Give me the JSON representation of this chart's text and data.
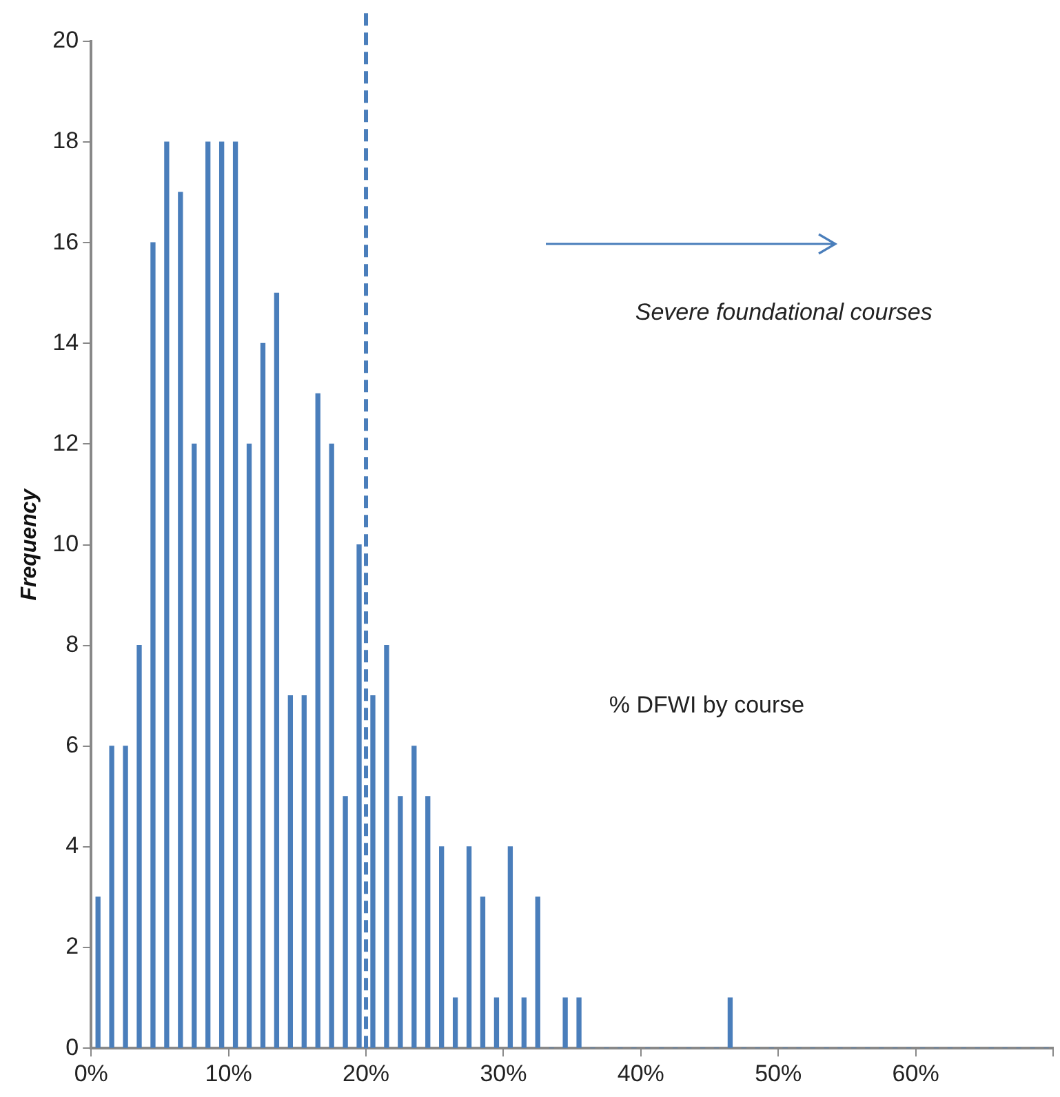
{
  "chart_data": {
    "type": "histogram",
    "ylabel": "Frequency",
    "bins": [
      0,
      1,
      2,
      3,
      4,
      5,
      6,
      7,
      8,
      9,
      10,
      11,
      12,
      13,
      14,
      15,
      16,
      17,
      18,
      19,
      20,
      21,
      22,
      23,
      24,
      25,
      26,
      27,
      28,
      29,
      30,
      31,
      32,
      33,
      34,
      35,
      36,
      37,
      38,
      39,
      40,
      41,
      42,
      43,
      44,
      45,
      46,
      47,
      48,
      49,
      50,
      51,
      52,
      53,
      54,
      55,
      56,
      57,
      58,
      59,
      60,
      61,
      62,
      63,
      64,
      65,
      66,
      67,
      68,
      69,
      70
    ],
    "values": [
      3,
      6,
      6,
      8,
      16,
      18,
      17,
      12,
      18,
      18,
      18,
      12,
      14,
      15,
      7,
      7,
      13,
      12,
      5,
      10,
      7,
      8,
      5,
      6,
      5,
      4,
      1,
      4,
      3,
      1,
      4,
      1,
      3,
      0,
      1,
      1,
      0,
      0,
      0,
      0,
      0,
      0,
      0,
      0,
      0,
      0,
      1,
      0,
      0,
      0,
      0,
      0,
      0,
      0,
      0,
      0,
      0,
      0,
      0,
      0,
      0,
      0,
      0,
      0,
      0,
      0,
      0,
      0,
      0,
      0
    ],
    "color": "#4a7ebb",
    "xlim": [
      0,
      70
    ],
    "xticks": [
      {
        "value": 0,
        "label": "0%"
      },
      {
        "value": 10,
        "label": "10%"
      },
      {
        "value": 20,
        "label": "20%"
      },
      {
        "value": 30,
        "label": "30%"
      },
      {
        "value": 40,
        "label": "40%"
      },
      {
        "value": 50,
        "label": "50%"
      },
      {
        "value": 60,
        "label": "60%"
      },
      {
        "value": 70,
        "label": null
      }
    ],
    "ylim": [
      0,
      20
    ],
    "yticks": [
      0,
      2,
      4,
      6,
      8,
      10,
      12,
      14,
      16,
      18,
      20
    ],
    "ref_lines": [
      {
        "axis": "x",
        "value": 20,
        "color": "#4a7ebb",
        "line_style": "dashed"
      }
    ],
    "annotations": [
      "Severe foundational courses",
      "% DFWI by course"
    ],
    "grid": false,
    "legend": false
  }
}
